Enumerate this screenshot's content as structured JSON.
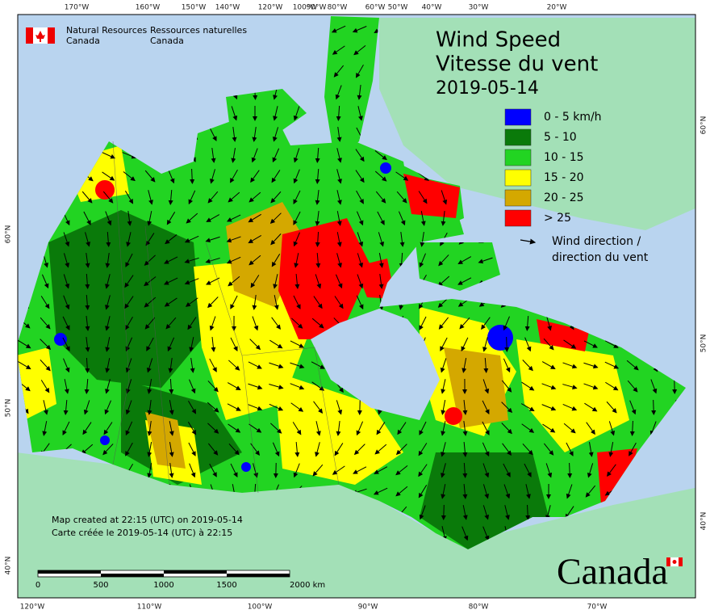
{
  "header": {
    "dept_en": [
      "Natural Resources",
      "Canada"
    ],
    "dept_fr": [
      "Ressources naturelles",
      "Canada"
    ]
  },
  "title": [
    "Wind Speed",
    "Vitesse du vent"
  ],
  "date": "2019-05-14",
  "legend": {
    "items": [
      {
        "label": "0 - 5 km/h",
        "color": "#0000ff"
      },
      {
        "label": "5 - 10",
        "color": "#0a7a0a"
      },
      {
        "label": "10 - 15",
        "color": "#22d422"
      },
      {
        "label": "15 - 20",
        "color": "#ffff00"
      },
      {
        "label": "20 - 25",
        "color": "#d4a800"
      },
      {
        "label": "> 25",
        "color": "#ff0000"
      }
    ],
    "arrow_label": [
      "Wind direction /",
      "direction du vent"
    ]
  },
  "notes": [
    "Map created at 22:15 (UTC) on 2019-05-14",
    "Carte créée le 2019-05-14 (UTC) à 22:15"
  ],
  "scale": {
    "labels": [
      "0",
      "500",
      "1000",
      "1500",
      "2000 km"
    ]
  },
  "wordmark": "Canada",
  "graticule": {
    "top": [
      "170°W",
      "160°W",
      "150°W",
      "140°W",
      "120°W",
      "100°W",
      "90°W",
      "80°W",
      "60°W",
      "50°W",
      "40°W",
      "30°W",
      "20°W"
    ],
    "bottom": [
      "120°W",
      "110°W",
      "100°W",
      "90°W",
      "80°W",
      "70°W"
    ],
    "left": [
      "60°N",
      "50°N",
      "40°N"
    ],
    "right": [
      "60°N",
      "50°N",
      "40°N"
    ]
  }
}
